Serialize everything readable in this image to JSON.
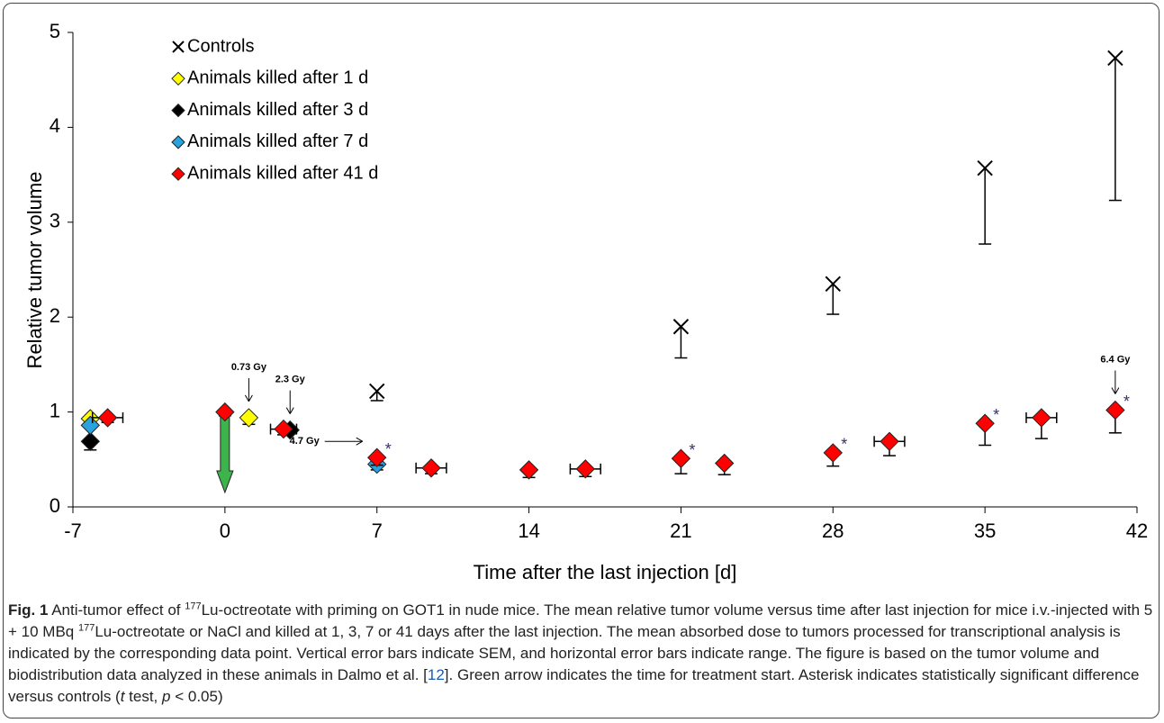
{
  "chart_data": {
    "type": "scatter",
    "xlabel": "Time after the last injection [d]",
    "ylabel": "Relative tumor volume",
    "xlim": [
      -7,
      42
    ],
    "xticks": [
      -7,
      0,
      7,
      14,
      21,
      28,
      35,
      42
    ],
    "ylim": [
      0,
      5
    ],
    "yticks": [
      0,
      1,
      2,
      3,
      4,
      5
    ],
    "legend": "upper left",
    "series": [
      {
        "name": "Controls",
        "marker": "x",
        "color": "#000000",
        "x": [
          7,
          21,
          28,
          35,
          41
        ],
        "values": [
          1.22,
          1.9,
          2.35,
          3.57,
          4.73
        ],
        "errors": [
          0.1,
          0.33,
          0.32,
          0.8,
          1.5
        ]
      },
      {
        "name": "Animals killed after 1 d",
        "marker": "diamond",
        "color": "#ffff00",
        "x": [
          -6.2,
          1.1
        ],
        "values": [
          0.93,
          0.94
        ],
        "errors": [
          null,
          0.07
        ]
      },
      {
        "name": "Animals killed after 3 d",
        "marker": "diamond",
        "color": "#000000",
        "x": [
          -6.2,
          3
        ],
        "values": [
          0.69,
          0.81
        ],
        "errors": [
          0.09,
          0.04
        ]
      },
      {
        "name": "Animals killed after 7 d",
        "marker": "diamond",
        "color": "#29a3e0",
        "x": [
          -6.2,
          7
        ],
        "values": [
          0.86,
          0.45
        ],
        "errors": [
          null,
          0.06
        ]
      },
      {
        "name": "Animals killed after 41 d",
        "marker": "diamond",
        "color": "#ff0000",
        "x": [
          -5.4,
          0,
          2.7,
          7,
          9.5,
          14,
          16.6,
          21,
          23,
          28,
          30.6,
          35,
          37.6,
          41
        ],
        "values": [
          0.94,
          1.0,
          0.82,
          0.52,
          0.41,
          0.39,
          0.4,
          0.51,
          0.46,
          0.57,
          0.69,
          0.88,
          0.94,
          1.02
        ],
        "errors": [
          0.05,
          0.04,
          0.06,
          0.08,
          0.06,
          0.08,
          0.08,
          0.16,
          0.12,
          0.14,
          0.15,
          0.23,
          0.22,
          0.24
        ],
        "xerr": [
          0.7,
          null,
          0.6,
          null,
          0.7,
          null,
          0.7,
          null,
          null,
          null,
          0.7,
          null,
          0.7,
          null
        ]
      }
    ],
    "annotations": [
      {
        "label": "0.73 Gy",
        "x": 1.1,
        "direction": "down"
      },
      {
        "label": "2.3 Gy",
        "x": 3,
        "direction": "down"
      },
      {
        "label": "4.7 Gy",
        "x": 7,
        "direction": "right"
      },
      {
        "label": "6.4 Gy",
        "x": 41,
        "direction": "down"
      }
    ],
    "significance": {
      "label": "*",
      "x": [
        7,
        21,
        28,
        35,
        41
      ],
      "color": "#333366"
    },
    "treatment_start": {
      "x": 0,
      "color": "#3cb44b"
    }
  },
  "caption": {
    "parts": [
      {
        "text": "Fig. 1",
        "style": "bold"
      },
      {
        "text": " Anti-tumor effect of ",
        "style": "plain"
      },
      {
        "text": "177",
        "style": "sup"
      },
      {
        "text": "Lu-octreotate with priming on GOT1 in nude mice. The mean relative tumor volume versus time after last injection for mice i.v.-injected with 5 + 10 MBq ",
        "style": "plain"
      },
      {
        "text": "177",
        "style": "sup"
      },
      {
        "text": "Lu-octreotate or NaCl and killed at 1, 3, 7 or 41 days after the last injection. The mean absorbed dose to tumors processed for transcriptional analysis is indicated by the corresponding data point. Vertical error bars indicate SEM, and horizontal error bars indicate range. The figure is based on the tumor volume and biodistribution data analyzed in these animals in Dalmo et al. [",
        "style": "plain"
      },
      {
        "text": "12",
        "style": "link"
      },
      {
        "text": "]. Green arrow indicates the time for treatment start. Asterisk indicates statistically significant difference versus controls (",
        "style": "plain"
      },
      {
        "text": "t",
        "style": "italic"
      },
      {
        "text": " test, ",
        "style": "plain"
      },
      {
        "text": "p",
        "style": "italic"
      },
      {
        "text": " < 0.05)",
        "style": "plain"
      }
    ]
  }
}
